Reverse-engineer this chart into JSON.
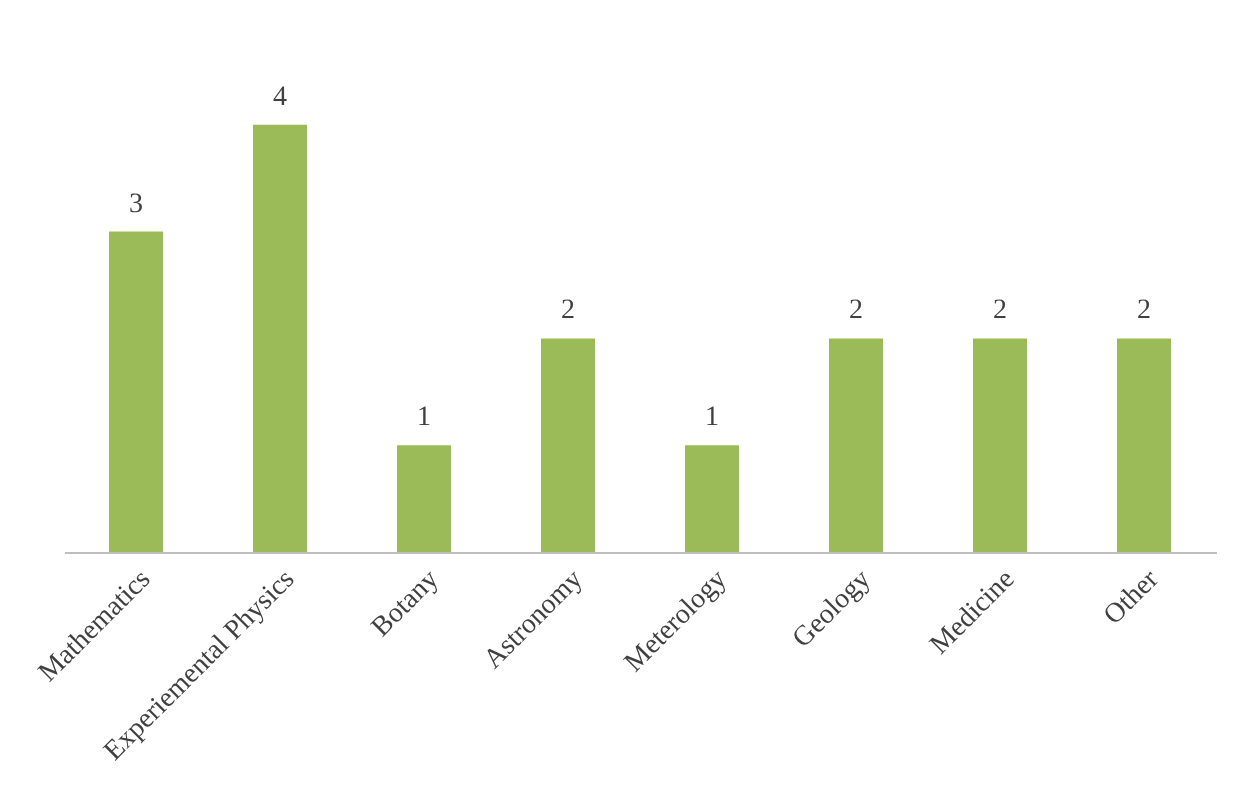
{
  "chart_data": {
    "type": "bar",
    "categories": [
      "Mathematics",
      "Experiemental Physics",
      "Botany",
      "Astronomy",
      "Meterology",
      "Geology",
      "Medicine",
      "Other"
    ],
    "values": [
      3,
      4,
      1,
      2,
      1,
      2,
      2,
      2
    ],
    "color": "#9bbb59",
    "data_labels": true
  }
}
